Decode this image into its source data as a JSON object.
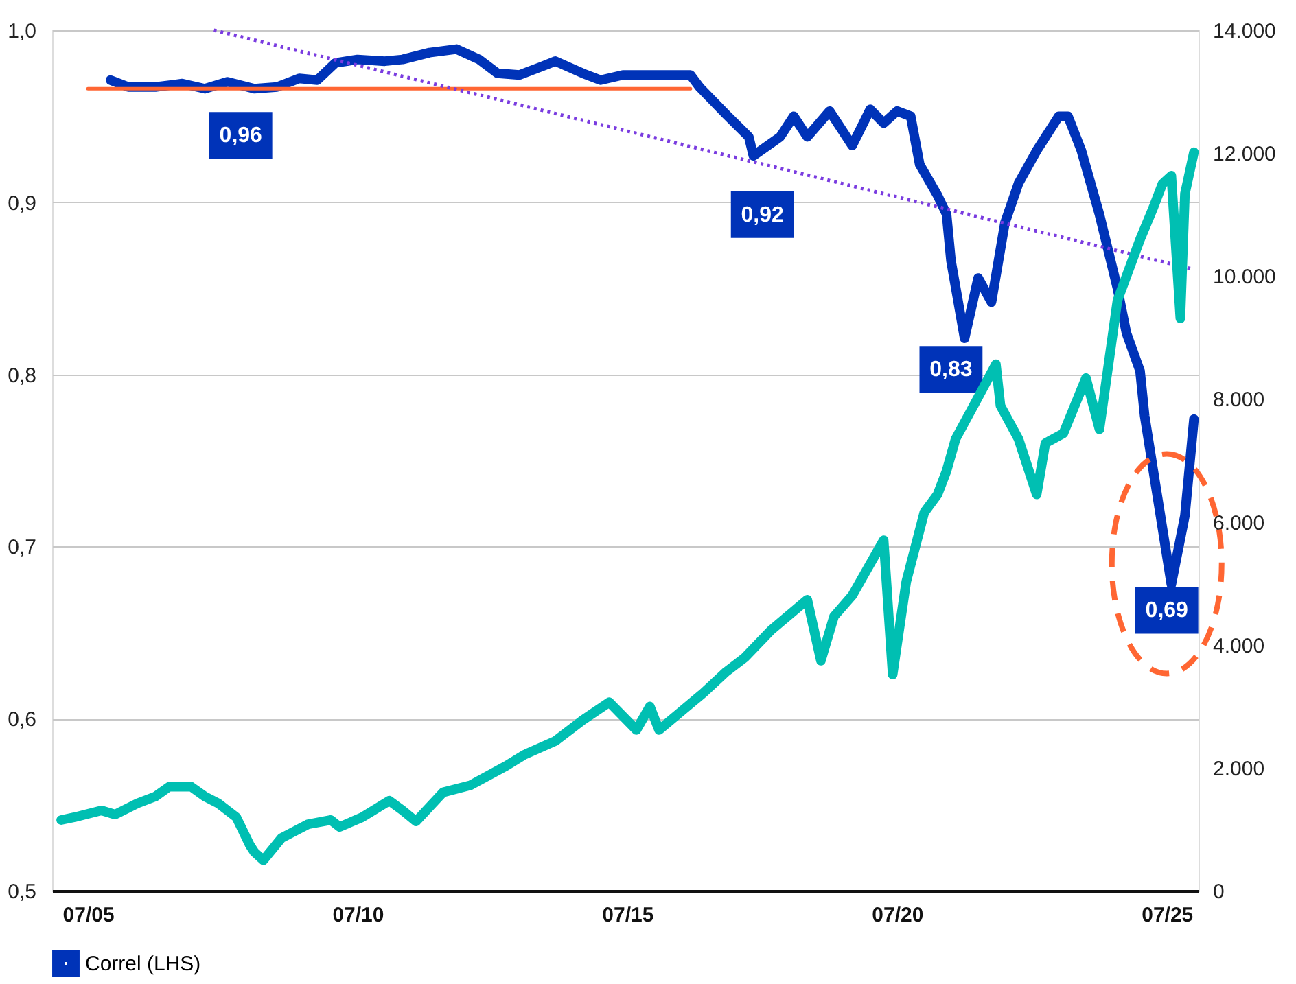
{
  "chart_data": {
    "type": "line",
    "xlim": [
      "2004-11",
      "2026-02"
    ],
    "xticks": [
      {
        "value": "2005-07",
        "label": "07/05"
      },
      {
        "value": "2010-07",
        "label": "07/10"
      },
      {
        "value": "2015-07",
        "label": "07/15"
      },
      {
        "value": "2020-07",
        "label": "07/20"
      },
      {
        "value": "2025-07",
        "label": "07/25"
      }
    ],
    "ylim": [
      0.5,
      1.0
    ],
    "yticks": [
      {
        "value": 0.5,
        "label": "0,5"
      },
      {
        "value": 0.6,
        "label": "0,6"
      },
      {
        "value": 0.7,
        "label": "0,7"
      },
      {
        "value": 0.8,
        "label": "0,8"
      },
      {
        "value": 0.9,
        "label": "0,9"
      },
      {
        "value": 1.0,
        "label": "1,0"
      }
    ],
    "y2lim": [
      0,
      14000
    ],
    "y2ticks": [
      0,
      {
        "value": 2000,
        "label": "2.000"
      },
      {
        "value": 4000,
        "label": "4.000"
      },
      {
        "value": 6000,
        "label": "6.000"
      },
      {
        "value": 8000,
        "label": "8.000"
      },
      {
        "value": 10000,
        "label": "10.000"
      },
      {
        "value": 12000,
        "label": "12.000"
      },
      {
        "value": 14000,
        "label": "14.000"
      }
    ],
    "grid": "y",
    "legend": "bottom",
    "line_style": "solid",
    "marker": "none",
    "series": [
      {
        "color": "#00bfb2",
        "axis": "y2",
        "x": [
          "2005-01",
          "2005-04",
          "2005-10",
          "2006-01",
          "2006-06",
          "2006-10",
          "2007-01",
          "2007-06",
          "2007-09",
          "2007-12",
          "2008-04",
          "2008-07",
          "2008-08",
          "2008-10",
          "2009-02",
          "2009-08",
          "2010-01",
          "2010-03",
          "2010-08",
          "2011-02",
          "2011-05",
          "2011-08",
          "2012-02",
          "2012-08",
          "2013-04",
          "2013-08",
          "2014-03",
          "2014-09",
          "2015-03",
          "2015-09",
          "2015-12",
          "2016-02",
          "2016-12",
          "2017-05",
          "2017-09",
          "2018-03",
          "2018-11",
          "2019-02",
          "2019-05",
          "2019-09",
          "2020-04",
          "2020-06",
          "2020-09",
          "2021-01",
          "2021-04",
          "2021-06",
          "2021-08",
          "2021-12",
          "2022-05",
          "2022-06",
          "2022-10",
          "2023-02",
          "2023-04",
          "2023-08",
          "2024-01",
          "2024-04",
          "2024-08",
          "2025-01",
          "2025-04",
          "2025-06",
          "2025-08",
          "2025-10",
          "2025-11",
          "2026-01"
        ],
        "values": [
          1150,
          1195,
          1307,
          1240,
          1420,
          1533,
          1690,
          1690,
          1533,
          1420,
          1195,
          744,
          630,
          496,
          857,
          1082,
          1150,
          1037,
          1195,
          1465,
          1307,
          1127,
          1601,
          1713,
          2029,
          2209,
          2435,
          2773,
          3066,
          2615,
          2998,
          2615,
          3224,
          3562,
          3787,
          4238,
          4734,
          3742,
          4463,
          4801,
          5703,
          3517,
          5027,
          6154,
          6447,
          6831,
          7349,
          7890,
          8566,
          7890,
          7349,
          6447,
          7281,
          7439,
          8341,
          7507,
          9603,
          10595,
          11114,
          11497,
          11632,
          9310,
          11339,
          12015
        ]
      },
      {
        "name": "Correl (LHS)",
        "color": "#0033b8",
        "x": [
          "2005-12",
          "2006-04",
          "2006-10",
          "2007-04",
          "2007-09",
          "2008-02",
          "2008-08",
          "2009-01",
          "2009-06",
          "2009-10",
          "2010-02",
          "2010-07",
          "2011-01",
          "2011-05",
          "2011-11",
          "2012-05",
          "2012-10",
          "2013-02",
          "2013-07",
          "2013-12",
          "2014-03",
          "2014-09",
          "2015-01",
          "2015-06",
          "2015-12",
          "2016-06",
          "2016-09",
          "2016-11",
          "2017-05",
          "2017-10",
          "2017-11",
          "2018-05",
          "2018-08",
          "2018-11",
          "2019-04",
          "2019-09",
          "2020-01",
          "2020-04",
          "2020-07",
          "2020-10",
          "2020-12",
          "2021-04",
          "2021-06",
          "2021-07",
          "2021-10",
          "2022-01",
          "2022-04",
          "2022-07",
          "2022-10",
          "2023-02",
          "2023-07",
          "2023-09",
          "2023-12",
          "2024-04",
          "2024-08",
          "2024-10",
          "2025-01",
          "2025-02",
          "2025-04",
          "2025-08",
          "2025-11",
          "2026-01"
        ],
        "values": [
          0.971,
          0.967,
          0.967,
          0.969,
          0.966,
          0.97,
          0.966,
          0.967,
          0.972,
          0.971,
          0.981,
          0.983,
          0.982,
          0.983,
          0.987,
          0.989,
          0.983,
          0.975,
          0.974,
          0.979,
          0.982,
          0.975,
          0.971,
          0.974,
          0.974,
          0.974,
          0.974,
          0.967,
          0.951,
          0.938,
          0.927,
          0.938,
          0.95,
          0.938,
          0.953,
          0.933,
          0.954,
          0.946,
          0.953,
          0.95,
          0.922,
          0.904,
          0.893,
          0.866,
          0.821,
          0.856,
          0.842,
          0.888,
          0.911,
          0.93,
          0.95,
          0.95,
          0.93,
          0.893,
          0.85,
          0.824,
          0.802,
          0.776,
          0.744,
          0.678,
          0.718,
          0.774
        ]
      },
      {
        "type": "line",
        "color": "#ff6633",
        "x": [
          "2005-07",
          "2016-09"
        ],
        "values": [
          0.966,
          0.966
        ]
      },
      {
        "type": "line",
        "line_style": "dotted",
        "color": "#7a3ce0",
        "x": [
          "2007-11",
          "2026-01"
        ],
        "values": [
          1.0,
          0.861
        ]
      }
    ],
    "annotations": [
      {
        "text": "0,96",
        "x": "2008-05",
        "y": 0.966
      },
      {
        "text": "0,92",
        "x": "2018-01",
        "y": 0.92
      },
      {
        "text": "0,83",
        "x": "2021-07",
        "y": 0.83
      },
      {
        "text": "0,69",
        "x": "2025-07",
        "y": 0.69
      }
    ]
  }
}
